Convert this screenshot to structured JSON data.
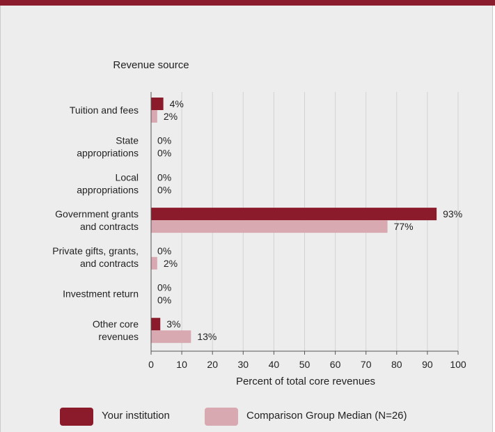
{
  "chart_data": {
    "type": "bar",
    "orientation": "horizontal",
    "title": "Revenue source",
    "xlabel": "Percent of total core revenues",
    "xlim": [
      0,
      100
    ],
    "xticks": [
      0,
      10,
      20,
      30,
      40,
      50,
      60,
      70,
      80,
      90,
      100
    ],
    "grid": "vertical",
    "legend_position": "bottom",
    "categories": [
      [
        "Tuition and fees"
      ],
      [
        "State",
        "appropriations"
      ],
      [
        "Local",
        "appropriations"
      ],
      [
        "Government grants",
        "and contracts"
      ],
      [
        "Private gifts, grants,",
        "and contracts"
      ],
      [
        "Investment return"
      ],
      [
        "Other core",
        "revenues"
      ]
    ],
    "series": [
      {
        "name": "Your institution",
        "color": "#8b1a2b",
        "values": [
          4,
          0,
          0,
          93,
          0,
          0,
          3
        ],
        "labels": [
          "4%",
          "0%",
          "0%",
          "93%",
          "0%",
          "0%",
          "3%"
        ]
      },
      {
        "name": "Comparison Group Median (N=26)",
        "color": "#d9a9b1",
        "values": [
          2,
          0,
          0,
          77,
          2,
          0,
          13
        ],
        "labels": [
          "2%",
          "0%",
          "0%",
          "77%",
          "2%",
          "0%",
          "13%"
        ]
      }
    ]
  }
}
